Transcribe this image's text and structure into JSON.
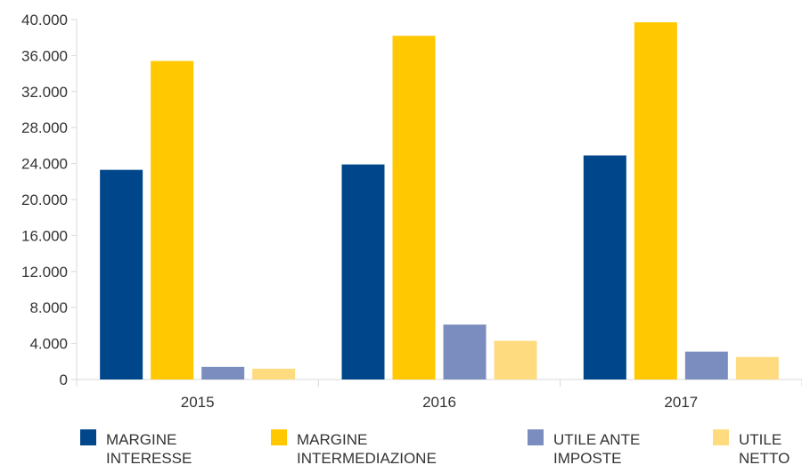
{
  "chart_data": {
    "type": "bar",
    "categories": [
      "2015",
      "2016",
      "2017"
    ],
    "series": [
      {
        "name": "MARGINE INTERESSE",
        "name_lines": [
          "MARGINE",
          "INTERESSE"
        ],
        "color": "#00468b",
        "values": [
          23300,
          23900,
          24900
        ]
      },
      {
        "name": "MARGINE INTERMEDIAZIONE",
        "name_lines": [
          "MARGINE",
          "INTERMEDIAZIONE"
        ],
        "color": "#ffc800",
        "values": [
          35400,
          38200,
          39700
        ]
      },
      {
        "name": "UTILE ANTE IMPOSTE",
        "name_lines": [
          "UTILE ANTE",
          "IMPOSTE"
        ],
        "color": "#7b8cbf",
        "values": [
          1400,
          6100,
          3100
        ]
      },
      {
        "name": "UTILE NETTO",
        "name_lines": [
          "UTILE",
          "NETTO"
        ],
        "color": "#ffdb80",
        "values": [
          1200,
          4300,
          2500
        ]
      }
    ],
    "ylim": [
      0,
      40000
    ],
    "yticks": [
      0,
      4000,
      8000,
      12000,
      16000,
      20000,
      24000,
      28000,
      32000,
      36000,
      40000
    ],
    "ytick_labels": [
      "0",
      "4.000",
      "8.000",
      "12.000",
      "16.000",
      "20.000",
      "24.000",
      "28.000",
      "32.000",
      "36.000",
      "40.000"
    ],
    "grid": false,
    "legend_position": "bottom"
  }
}
